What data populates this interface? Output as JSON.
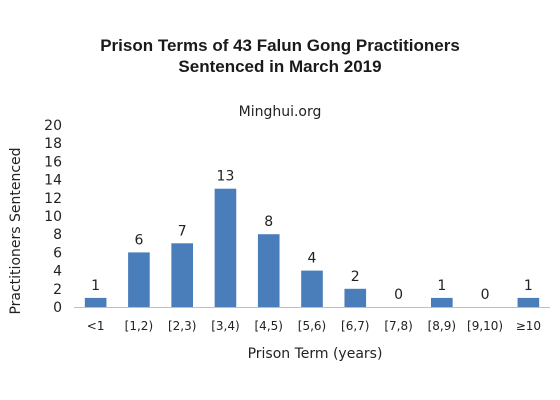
{
  "chart_data": {
    "type": "bar",
    "title_lines": [
      "Prison Terms of 43 Falun Gong Practitioners",
      "Sentenced in March 2019"
    ],
    "subtitle": "Minghui.org",
    "xlabel": "Prison Term (years)",
    "ylabel": "Practitioners Sentenced",
    "categories": [
      "<1",
      "[1,2)",
      "[2,3)",
      "[3,4)",
      "[4,5)",
      "[5,6)",
      "[6,7)",
      "[7,8)",
      "[8,9)",
      "[9,10)",
      "≥10"
    ],
    "values": [
      1,
      6,
      7,
      13,
      8,
      4,
      2,
      0,
      1,
      0,
      1
    ],
    "ylim": [
      0,
      20
    ],
    "yticks": [
      0,
      2,
      4,
      6,
      8,
      10,
      12,
      14,
      16,
      18,
      20
    ],
    "grid": false,
    "data_labels": true,
    "bar_color": "#4a7ebb"
  }
}
